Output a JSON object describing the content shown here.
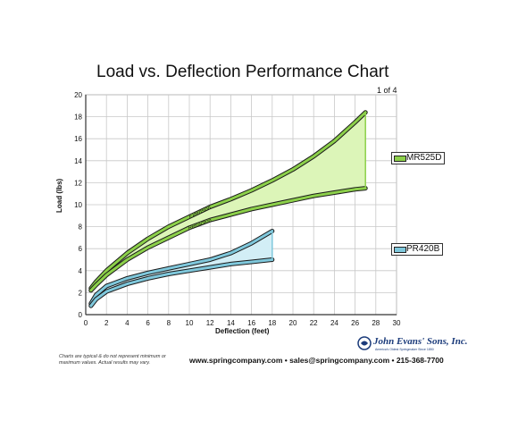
{
  "header": {
    "title": "Load vs. Deflection Performance Chart",
    "page_indicator": "1 of 4"
  },
  "chart_data": {
    "type": "line",
    "title": "Load vs. Deflection Performance Chart",
    "xlabel": "Deflection (feet)",
    "ylabel": "Load (lbs)",
    "xlim": [
      0,
      30
    ],
    "ylim": [
      0,
      20
    ],
    "x_ticks": [
      0,
      2,
      4,
      6,
      8,
      10,
      12,
      14,
      16,
      18,
      20,
      22,
      24,
      26,
      28,
      30
    ],
    "y_ticks": [
      0,
      2,
      4,
      6,
      8,
      10,
      12,
      14,
      16,
      18,
      20
    ],
    "grid": true,
    "legend_position": "right",
    "series": [
      {
        "name": "MR525D",
        "color": "#8cd04a",
        "fill": "#dcf5b8",
        "extension": {
          "label": "Extension",
          "x": [
            0.5,
            1,
            2,
            4,
            6,
            8,
            10,
            12,
            14,
            16,
            18,
            20,
            22,
            24,
            26,
            27
          ],
          "y": [
            2.4,
            3.0,
            4.0,
            5.6,
            6.9,
            8.0,
            8.9,
            9.8,
            10.5,
            11.3,
            12.2,
            13.2,
            14.4,
            15.8,
            17.5,
            18.4
          ]
        },
        "retraction": {
          "label": "Retraction",
          "x": [
            0.5,
            1,
            2,
            4,
            6,
            8,
            10,
            12,
            14,
            16,
            18,
            20,
            22,
            24,
            26,
            27
          ],
          "y": [
            2.2,
            2.7,
            3.6,
            5.0,
            6.1,
            7.0,
            7.9,
            8.6,
            9.1,
            9.6,
            10.0,
            10.4,
            10.8,
            11.1,
            11.4,
            11.5
          ]
        }
      },
      {
        "name": "PR420B",
        "color": "#7fc8dc",
        "fill": "#d2eef6",
        "extension": {
          "label": "Extension",
          "x": [
            0.5,
            1,
            2,
            4,
            6,
            8,
            10,
            12,
            14,
            16,
            18
          ],
          "y": [
            1.0,
            1.8,
            2.6,
            3.3,
            3.8,
            4.2,
            4.6,
            5.0,
            5.6,
            6.5,
            7.6
          ]
        },
        "retraction": {
          "label": "Retraction",
          "x": [
            0.5,
            1,
            2,
            4,
            6,
            8,
            10,
            12,
            14,
            16,
            18
          ],
          "y": [
            0.8,
            1.4,
            2.1,
            2.8,
            3.3,
            3.7,
            4.0,
            4.3,
            4.6,
            4.8,
            5.0
          ]
        }
      }
    ]
  },
  "legend": {
    "mr525d": "MR525D",
    "pr420b": "PR420B"
  },
  "footer": {
    "disclaimer": "Charts are typical & do not represent minimum or maximum values. Actual results may vary.",
    "contact": "www.springcompany.com  •  sales@springcompany.com  •  215-368-7700",
    "logo_name": "John Evans' Sons, Inc.",
    "logo_tagline": "America's Oldest Springmaker Since 1850"
  }
}
